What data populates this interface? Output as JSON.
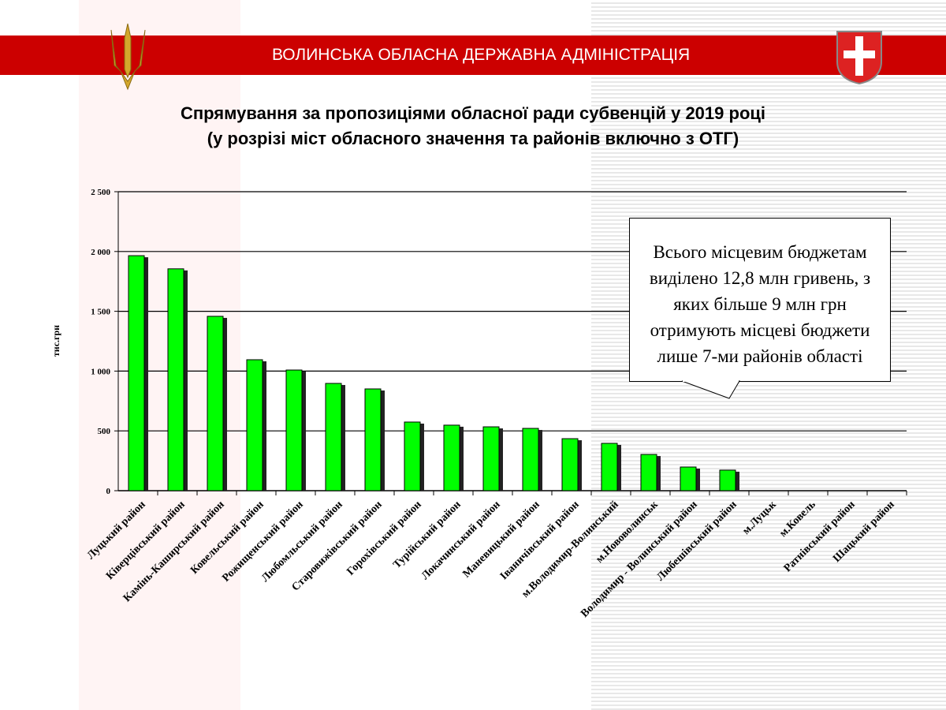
{
  "header": {
    "org": "ВОЛИНСЬКА ОБЛАСНА ДЕРЖАВНА АДМІНІСТРАЦІЯ"
  },
  "callout": {
    "lines": [
      "Всього місцевим бюджетам",
      "виділено 12,8 млн гривень, з",
      "яких більше 9 млн грн",
      "отримують місцеві бюджети",
      "лише 7-ми районів області"
    ]
  },
  "colors": {
    "bar": "#00ff00",
    "band": "#cc0000"
  },
  "chart_data": {
    "type": "bar",
    "title": "Спрямування за пропозиціями обласної ради субвенцій у 2019 році",
    "subtitle": "(у розрізі міст обласного значення та районів включно з ОТГ)",
    "ylabel": "тис.грн",
    "xlabel": "",
    "ylim": [
      0,
      2500
    ],
    "yticks": [
      0,
      500,
      1000,
      1500,
      2000,
      2500
    ],
    "ytick_labels": [
      "0",
      "500",
      "1 000",
      "1 500",
      "2 000",
      "2 500"
    ],
    "grid": true,
    "categories": [
      "Луцький район",
      "Ківерцівський район",
      "Камінь-Каширський район",
      "Ковельський район",
      "Рожищенський район",
      "Любомльський район",
      "Старовижівський район",
      "Горохівський район",
      "Турійський район",
      "Локачинський район",
      "Маневицький район",
      "Іваничівський район",
      "м.Володимир-Волинський",
      "м.Нововолинськ",
      "Володимир - Волинський район",
      "Любешівський район",
      "м.Луцьк",
      "м.Ковель",
      "Ратнівський район",
      "Шацький район"
    ],
    "values": [
      1965,
      1855,
      1458,
      1095,
      1009,
      897,
      851,
      574,
      548,
      534,
      521,
      435,
      396,
      303,
      198,
      172,
      0,
      0,
      0,
      0
    ]
  }
}
